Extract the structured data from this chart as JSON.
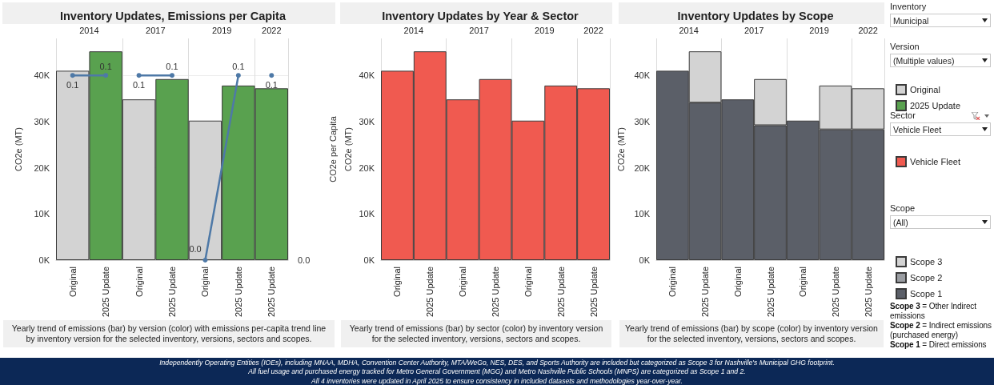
{
  "chart_data": [
    {
      "type": "bar",
      "title": "Inventory Updates, Emissions per Capita",
      "ylabel": "CO2e (MT)",
      "y2label": "CO2e per Capita",
      "categories": [
        "Original",
        "2025 Update",
        "Original",
        "2025 Update",
        "Original",
        "2025 Update",
        "2025 Update"
      ],
      "series": [
        {
          "name": "Original",
          "color": "#d3d3d3",
          "values": [
            41000,
            null,
            34800,
            null,
            30200,
            null,
            null
          ]
        },
        {
          "name": "2025 Update",
          "color": "#59a14f",
          "values": [
            null,
            45200,
            null,
            39200,
            null,
            37800,
            37200
          ]
        },
        {
          "type": "line",
          "axis": "y2",
          "color": "#4e79a7",
          "values": [
            0.1,
            0.1,
            null,
            null,
            null,
            null,
            null
          ],
          "value_labels": [
            "0.1",
            "0.1",
            null,
            null,
            null,
            null,
            null
          ]
        },
        {
          "type": "line",
          "axis": "y2",
          "color": "#4e79a7",
          "values": [
            null,
            null,
            0.1,
            0.1,
            null,
            null,
            null
          ],
          "value_labels": [
            null,
            null,
            "0.1",
            "0.1",
            null,
            null,
            null
          ]
        },
        {
          "type": "line",
          "axis": "y2",
          "color": "#4e79a7",
          "values": [
            null,
            null,
            null,
            null,
            0.0,
            0.1,
            null
          ],
          "value_labels": [
            null,
            null,
            null,
            null,
            "0.0",
            "0.1",
            null
          ]
        },
        {
          "type": "line",
          "axis": "y2",
          "color": "#4e79a7",
          "values": [
            null,
            null,
            null,
            null,
            null,
            null,
            0.1
          ],
          "value_labels": [
            null,
            null,
            null,
            null,
            null,
            null,
            "0.1"
          ]
        }
      ],
      "ylim": [
        0,
        48000
      ],
      "yticks": [
        {
          "value": 0,
          "label": "0K"
        },
        {
          "value": 10000,
          "label": "10K"
        },
        {
          "value": 20000,
          "label": "20K"
        },
        {
          "value": 30000,
          "label": "30K"
        },
        {
          "value": 40000,
          "label": "40K"
        }
      ],
      "y2lim": [
        0,
        0.12
      ],
      "marker": "circle",
      "grid": "y",
      "legend": "right",
      "annotations": [
        "Yearly trend of emissions (bar) by version (color) with emissions per-capita trend line by inventory version for the selected inventory, versions, sectors and scopes.",
        "2014",
        "2017",
        "2019",
        "2022",
        "0.0"
      ]
    },
    {
      "type": "bar",
      "title": "Inventory Updates by Year & Sector",
      "ylabel": "CO2e (MT)",
      "categories": [
        "Original",
        "2025 Update",
        "Original",
        "2025 Update",
        "Original",
        "2025 Update",
        "2025 Update"
      ],
      "series": [
        {
          "name": "Vehicle Fleet",
          "color": "#f05a50",
          "values": [
            41000,
            45200,
            34800,
            39200,
            30200,
            37800,
            37200
          ]
        }
      ],
      "ylim": [
        0,
        48000
      ],
      "yticks": [
        {
          "value": 0,
          "label": "0K"
        },
        {
          "value": 10000,
          "label": "10K"
        },
        {
          "value": 20000,
          "label": "20K"
        },
        {
          "value": 30000,
          "label": "30K"
        },
        {
          "value": 40000,
          "label": "40K"
        }
      ],
      "legend": "right",
      "annotations": [
        "Yearly trend of emissions (bar) by sector (color) by inventory version for the selected inventory, versions, sectors and scopes.",
        "2014",
        "2017",
        "2019",
        "2022"
      ]
    },
    {
      "type": "bar",
      "title": "Inventory Updates by Scope",
      "ylabel": "CO2e (MT)",
      "categories": [
        "Original",
        "2025 Update",
        "Original",
        "2025 Update",
        "Original",
        "2025 Update",
        "2025 Update"
      ],
      "stacked": true,
      "series": [
        {
          "name": "Scope 1",
          "color": "#5b5f68",
          "values": [
            41000,
            34100,
            34800,
            29200,
            30200,
            28300,
            28300
          ]
        },
        {
          "name": "Scope 2",
          "color": "#9a9da2",
          "values": [
            null,
            null,
            null,
            null,
            null,
            null,
            null
          ]
        },
        {
          "name": "Scope 3",
          "color": "#d3d3d3",
          "values": [
            null,
            11100,
            null,
            10000,
            null,
            9500,
            8900
          ]
        }
      ],
      "ylim": [
        0,
        48000
      ],
      "yticks": [
        {
          "value": 0,
          "label": "0K"
        },
        {
          "value": 10000,
          "label": "10K"
        },
        {
          "value": 20000,
          "label": "20K"
        },
        {
          "value": 30000,
          "label": "30K"
        },
        {
          "value": 40000,
          "label": "40K"
        }
      ],
      "legend": "right",
      "annotations": [
        "Yearly trend of emissions (bar) by scope (color) by inventory version for the selected inventory, versions, sectors and scopes.",
        "2014",
        "2017",
        "2019",
        "2022"
      ]
    },
    {
      "type": "other",
      "annotations": [
        "Inventory",
        "Municipal",
        "Version",
        "(Multiple values)",
        "Sector",
        "Vehicle Fleet",
        "Scope",
        "(All)",
        "Scope 3 = Other Indirect emissions",
        "Scope 2 = Indirect emissions (purchased energy)",
        "Scope 1  = Direct emissions",
        "Independently Operating Entities (IOEs), including MNAA, MDHA, Convention Center Authority, MTA/WeGo, NES, DES, and Sports Authority are included but categorized as Scope 3 for Nashville's Municipal GHG footprint.",
        "All  fuel usage and purchased energy tracked for Metro General Government (MGG) and Metro Nashville Public Schools (MNPS) are categorized as Scope 1 and 2.",
        "All 4 inventories were updated in April 2025 to ensure consistency in included datasets and methodologies year-over-year."
      ]
    }
  ]
}
